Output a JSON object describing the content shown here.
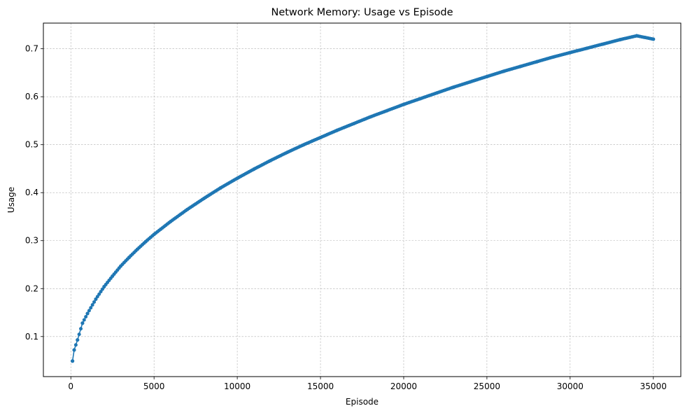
{
  "chart_data": {
    "type": "line",
    "title": "Network Memory: Usage vs Episode",
    "xlabel": "Episode",
    "ylabel": "Usage",
    "xlim": [
      -1650,
      36650
    ],
    "ylim": [
      0.0165,
      0.7535
    ],
    "xticks": [
      0,
      5000,
      10000,
      15000,
      20000,
      25000,
      30000,
      35000
    ],
    "yticks": [
      0.1,
      0.2,
      0.3,
      0.4,
      0.5,
      0.6,
      0.7
    ],
    "grid": true,
    "series_color": "#1f77b4",
    "series": [
      {
        "marker": "circle",
        "x": [
          100,
          200,
          400,
          700,
          1000,
          1500,
          2000,
          2500,
          3000,
          3500,
          4000,
          4500,
          5000,
          6000,
          7000,
          8000,
          9000,
          10000,
          11000,
          12000,
          13000,
          14000,
          15000,
          16000,
          17000,
          18000,
          19000,
          20000,
          21000,
          22000,
          23000,
          24000,
          25000,
          26000,
          27000,
          28000,
          29000,
          30000,
          31000,
          32000,
          33000,
          34000,
          35000
        ],
        "y": [
          0.049,
          0.072,
          0.093,
          0.128,
          0.148,
          0.178,
          0.204,
          0.226,
          0.247,
          0.265,
          0.282,
          0.298,
          0.313,
          0.34,
          0.365,
          0.388,
          0.41,
          0.43,
          0.449,
          0.467,
          0.484,
          0.5,
          0.515,
          0.53,
          0.544,
          0.558,
          0.571,
          0.584,
          0.596,
          0.608,
          0.62,
          0.631,
          0.642,
          0.653,
          0.663,
          0.673,
          0.683,
          0.692,
          0.701,
          0.71,
          0.719,
          0.727,
          0.72
        ]
      }
    ]
  }
}
